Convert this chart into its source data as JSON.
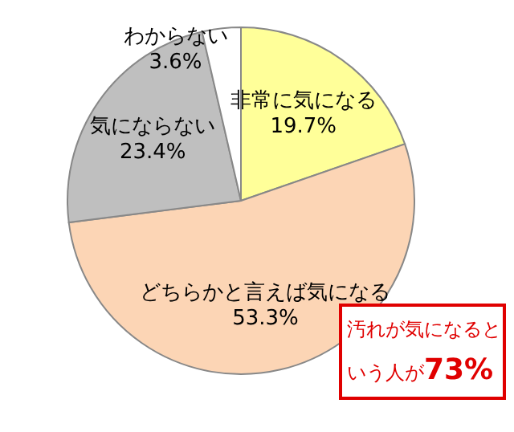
{
  "chart_data": {
    "type": "pie",
    "categories": [
      "非常に気になる",
      "どちらかと言えば気になる",
      "気にならない",
      "わからない"
    ],
    "values": [
      19.7,
      53.3,
      23.4,
      3.6
    ],
    "colors": [
      "#ffff99",
      "#fcd5b5",
      "#bfbfbf",
      "#ffffff"
    ],
    "value_labels": [
      "19.7%",
      "53.3%",
      "23.4%",
      "3.6%"
    ],
    "annotations": [
      "汚れが気になるという人が**73%**"
    ]
  }
}
